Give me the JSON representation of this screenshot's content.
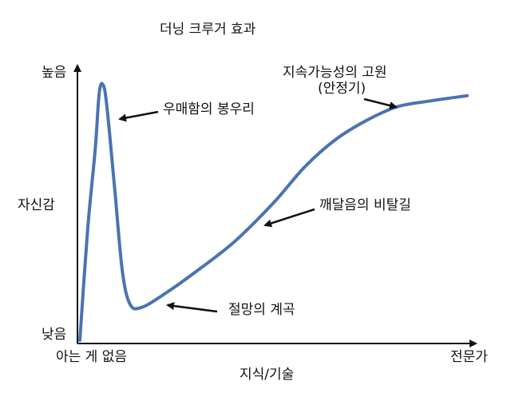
{
  "chart_data": {
    "type": "line",
    "title": "더닝 크루거 효과",
    "xlabel": "지식/기술",
    "ylabel": "자신감",
    "x_ticks": {
      "start": "아는 게 없음",
      "end": "전문가"
    },
    "y_ticks": {
      "top": "높음",
      "bottom": "낮음"
    },
    "series": [
      {
        "color": "#4a73b2",
        "points": [
          [
            0,
            0
          ],
          [
            2,
            40
          ],
          [
            4,
            70
          ],
          [
            5,
            90
          ],
          [
            6,
            93
          ],
          [
            7,
            85
          ],
          [
            9,
            55
          ],
          [
            11,
            25
          ],
          [
            13,
            13
          ],
          [
            16,
            12
          ],
          [
            22,
            17
          ],
          [
            30,
            25
          ],
          [
            40,
            36
          ],
          [
            50,
            50
          ],
          [
            58,
            63
          ],
          [
            66,
            73
          ],
          [
            74,
            80
          ],
          [
            82,
            85
          ],
          [
            90,
            87
          ],
          [
            100,
            89
          ]
        ]
      }
    ],
    "xlim": [
      0,
      100
    ],
    "ylim": [
      0,
      100
    ],
    "annotations": [
      {
        "text": "우매함의 봉우리",
        "x": 6,
        "y": 93
      },
      {
        "text": "절망의 계곡",
        "x": 14,
        "y": 12
      },
      {
        "text": "깨달음의 비탈길",
        "x": 47,
        "y": 44
      },
      {
        "text": "지속가능성의 고원",
        "line2": "(안정기)",
        "x": 83,
        "y": 85
      }
    ]
  }
}
